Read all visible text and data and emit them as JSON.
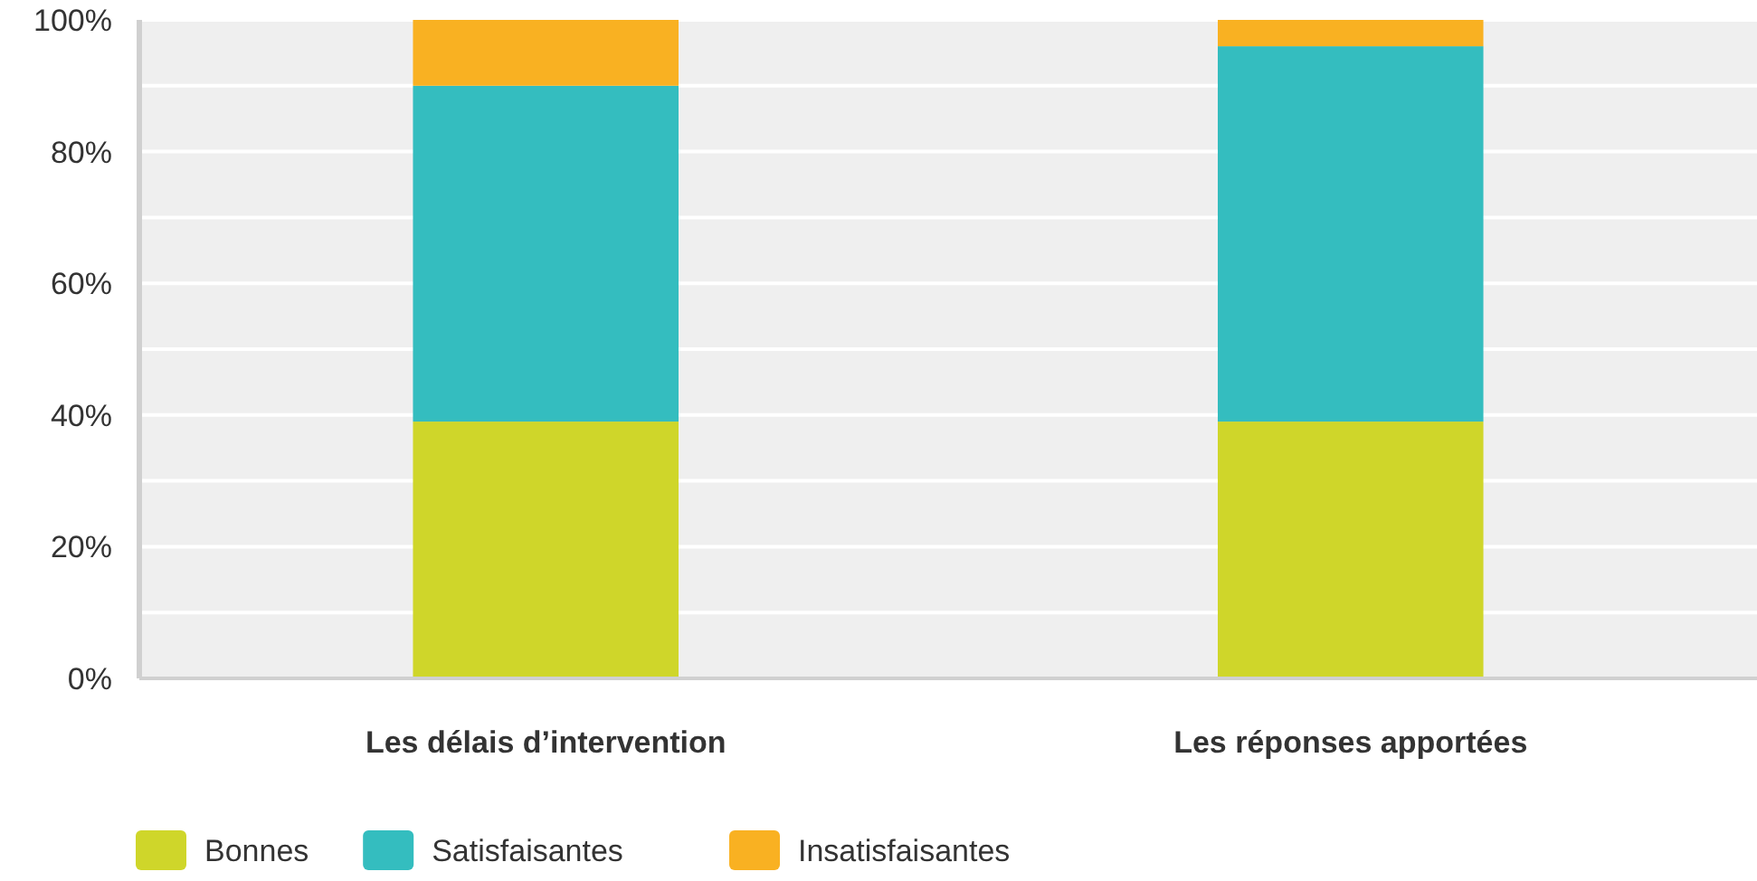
{
  "chart_data": {
    "type": "bar",
    "stacked": true,
    "categories": [
      "Les délais d’intervention",
      "Les réponses apportées"
    ],
    "series": [
      {
        "name": "Bonnes",
        "color": "#cfd62a",
        "values": [
          39,
          39
        ]
      },
      {
        "name": "Satisfaisantes",
        "color": "#34bdbf",
        "values": [
          51,
          57
        ]
      },
      {
        "name": "Insatisfaisantes",
        "color": "#f9b122",
        "values": [
          10,
          4
        ]
      }
    ],
    "ylim": [
      0,
      100
    ],
    "yticks": [
      {
        "value": 0,
        "label": "0%"
      },
      {
        "value": 10,
        "label": null
      },
      {
        "value": 20,
        "label": "20%"
      },
      {
        "value": 30,
        "label": null
      },
      {
        "value": 40,
        "label": "40%"
      },
      {
        "value": 50,
        "label": null
      },
      {
        "value": 60,
        "label": "60%"
      },
      {
        "value": 70,
        "label": null
      },
      {
        "value": 80,
        "label": "80%"
      },
      {
        "value": 90,
        "label": null
      },
      {
        "value": 100,
        "label": "100%"
      }
    ],
    "grid": "y",
    "legend": "bottom left"
  }
}
